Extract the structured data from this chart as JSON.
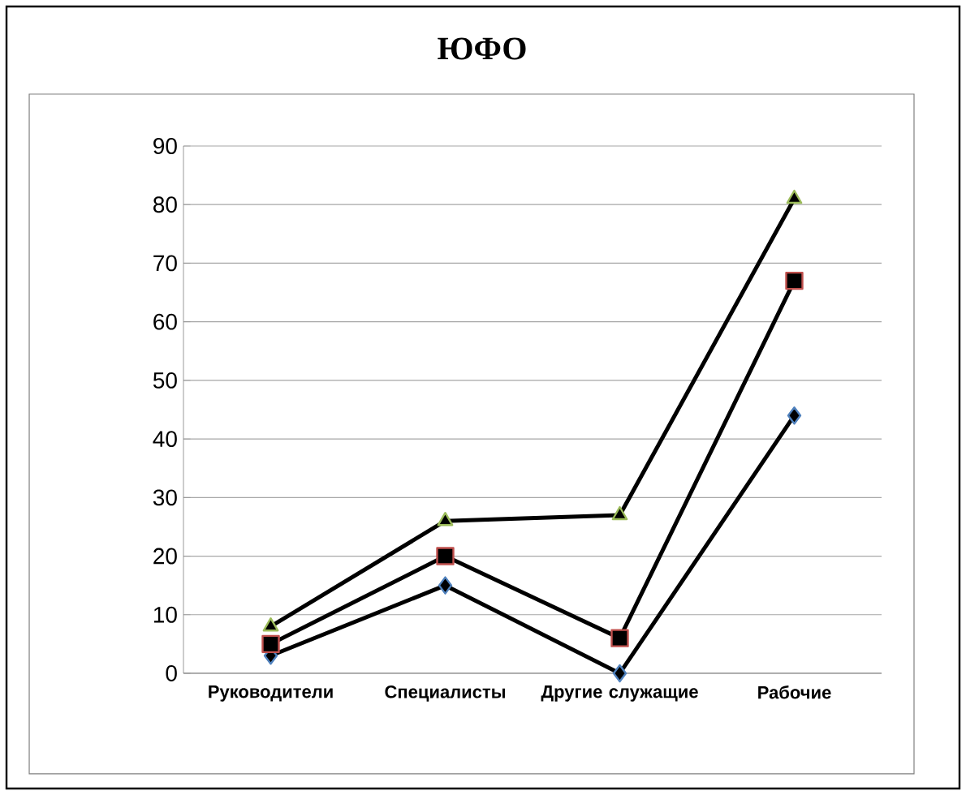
{
  "chart_data": {
    "type": "line",
    "title": "ЮФО",
    "categories": [
      "Руководители",
      "Специалисты",
      "Другие служащие",
      "Рабочие"
    ],
    "series": [
      {
        "color": "#000000",
        "marker": "diamond",
        "values": [
          3,
          15,
          0,
          44
        ]
      },
      {
        "color": "#000000",
        "marker": "square",
        "values": [
          5,
          20,
          6,
          67
        ]
      },
      {
        "color": "#000000",
        "marker": "triangle",
        "values": [
          8,
          26,
          27,
          81
        ]
      }
    ],
    "ylim": [
      0,
      90
    ],
    "yticks": [
      0,
      10,
      20,
      30,
      40,
      50,
      60,
      70,
      80,
      90
    ],
    "grid": "y",
    "line_style": "solid"
  }
}
